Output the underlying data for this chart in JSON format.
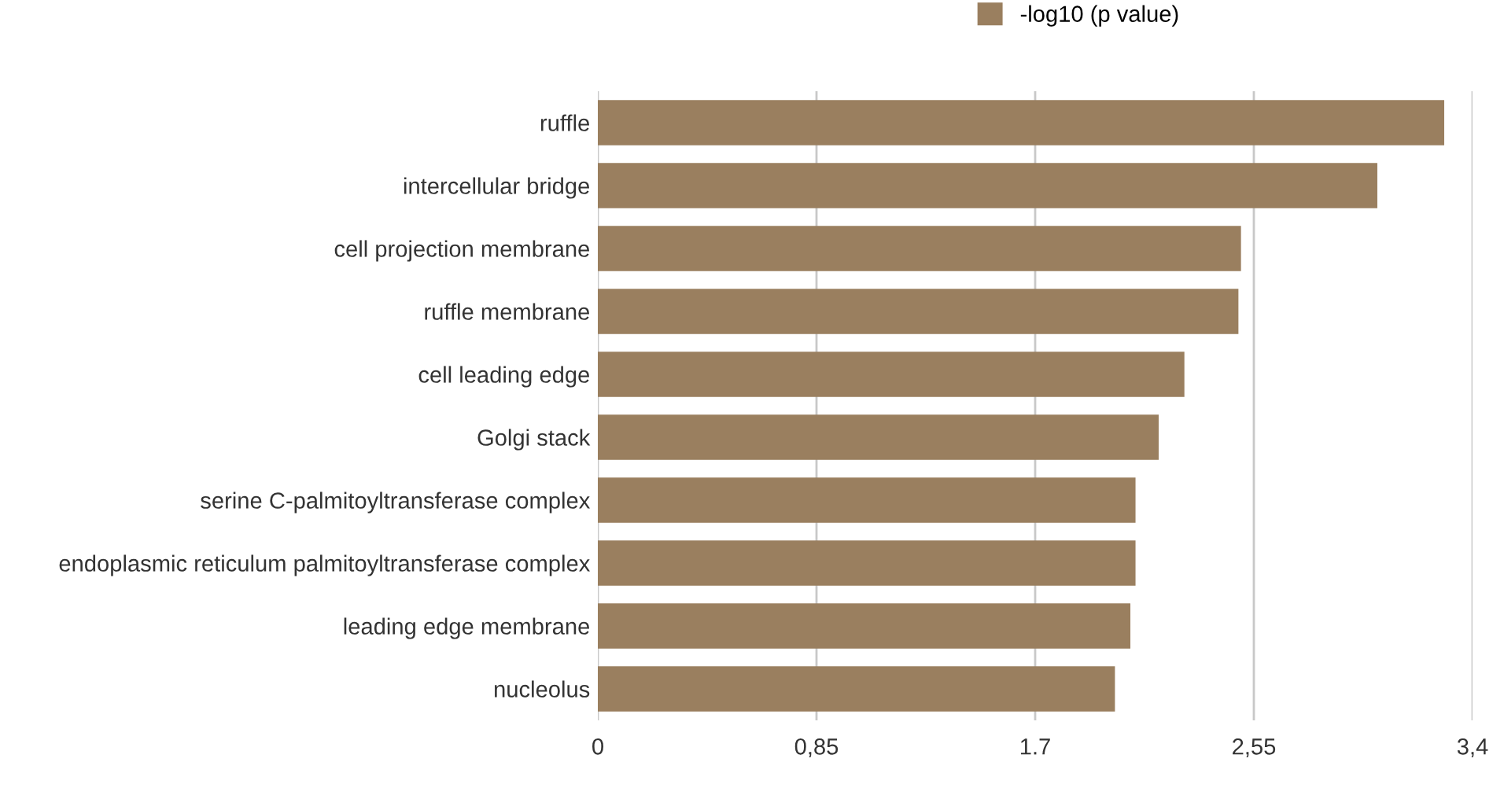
{
  "chart_data": {
    "type": "bar",
    "orientation": "horizontal",
    "categories": [
      "ruffle",
      "intercellular bridge",
      "cell projection membrane",
      "ruffle membrane",
      "cell leading edge",
      "Golgi stack",
      "serine C-palmitoyltransferase complex",
      "endoplasmic reticulum palmitoyltransferase complex",
      "leading edge membrane",
      "nucleolus"
    ],
    "series": [
      {
        "name": "-log10 (p value)",
        "color": "#9a7f5f",
        "values": [
          3.29,
          3.03,
          2.5,
          2.49,
          2.28,
          2.18,
          2.09,
          2.09,
          2.07,
          2.01
        ]
      }
    ],
    "xlim": [
      0,
      3.4
    ],
    "xticks": [
      0,
      {
        "value": 0.85,
        "label": "0,85"
      },
      1.7,
      {
        "value": 2.55,
        "label": "2,55"
      },
      {
        "value": 3.4,
        "label": "3,4"
      }
    ],
    "grid": "x",
    "legend": "top"
  }
}
